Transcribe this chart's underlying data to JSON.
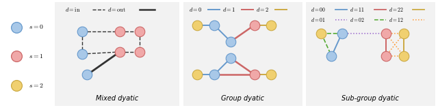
{
  "colors": {
    "blue": "#A8C8E8",
    "pink": "#F0A8A8",
    "yellow": "#F0D070",
    "blue_edge": "#6699CC",
    "pink_edge": "#CC6666",
    "yellow_edge": "#CCAA44",
    "black": "#333333",
    "green": "#55AA33",
    "purple": "#9966CC",
    "orange": "#FF9933"
  },
  "panel_titles": [
    "Mixed dyatic",
    "Group dyatic",
    "Sub-group dyatic"
  ],
  "panel_bg": "#F2F2F2",
  "panel_border": "#CCCCCC"
}
